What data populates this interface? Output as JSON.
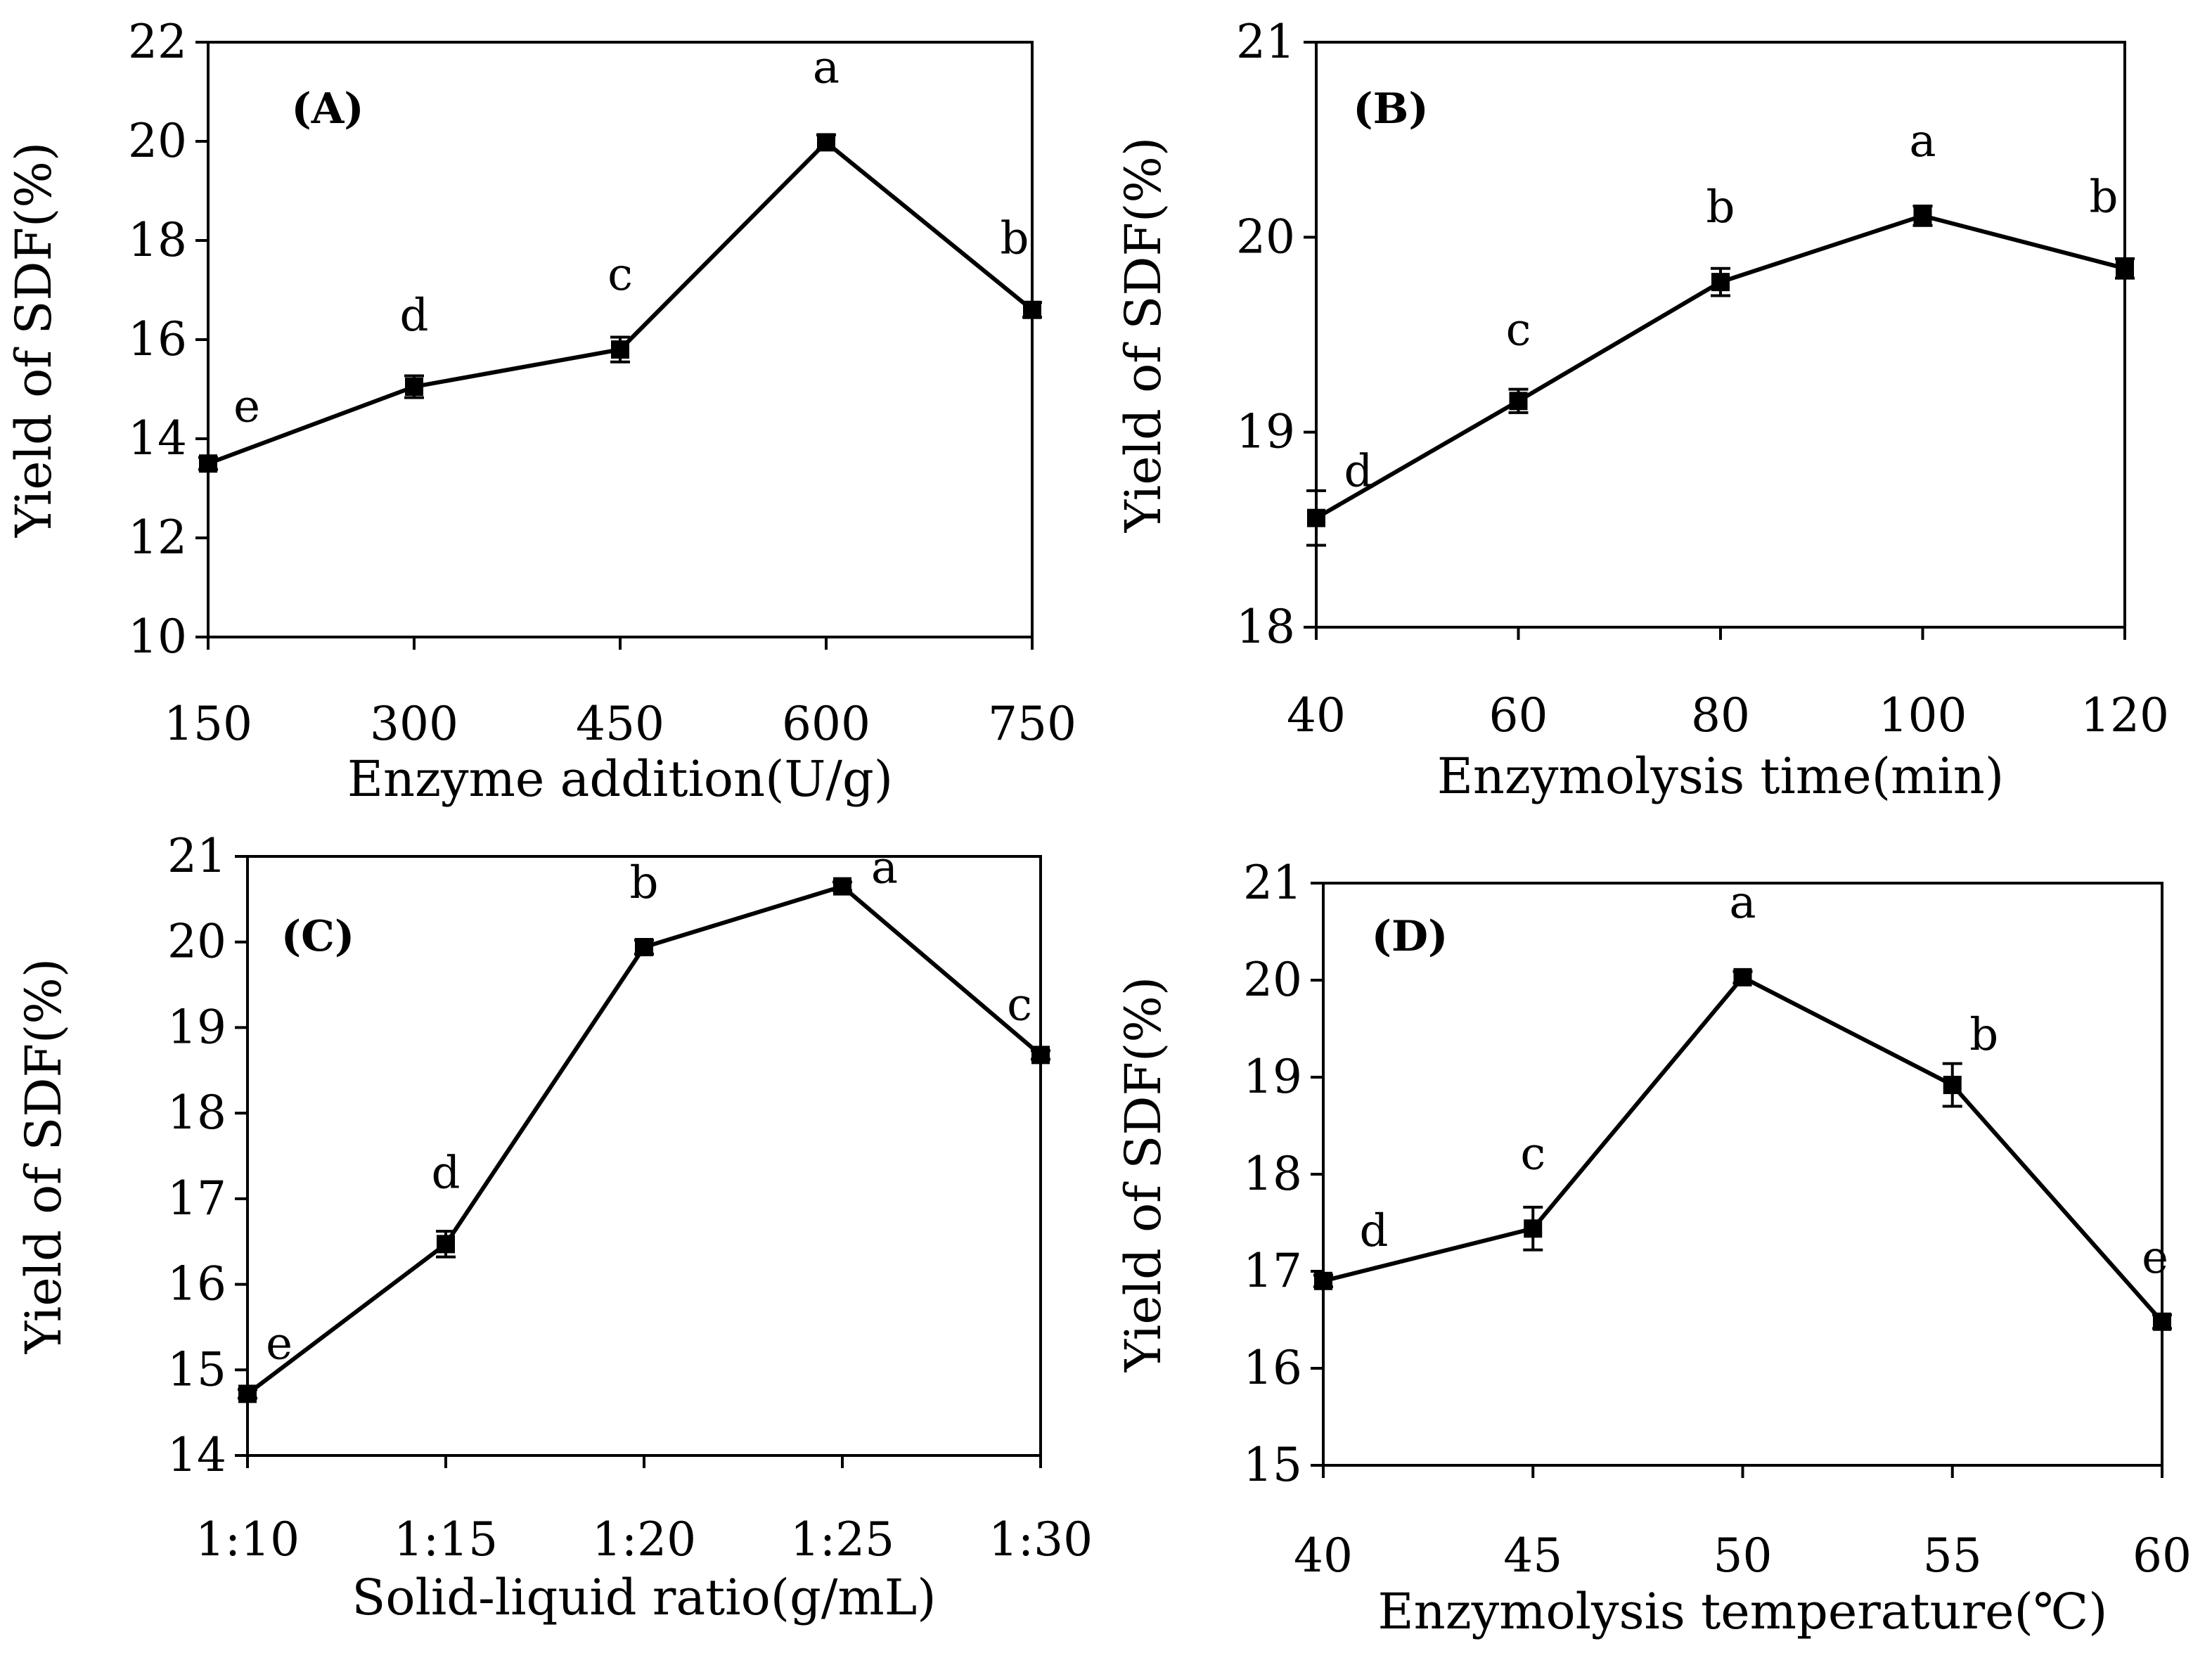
{
  "chart_data": [
    {
      "type": "line",
      "panel_label": "(A)",
      "xlabel": "Enzyme addition(U/g)",
      "ylabel": "Yield of SDF(%)",
      "categories": [
        "150",
        "300",
        "450",
        "600",
        "750"
      ],
      "values": [
        13.5,
        15.05,
        15.8,
        19.98,
        16.6
      ],
      "errors": [
        0.12,
        0.22,
        0.25,
        0.15,
        0.15
      ],
      "significance": [
        "e",
        "d",
        "c",
        "a",
        "b"
      ],
      "ylim": [
        10,
        22
      ],
      "yticks": [
        "10",
        "12",
        "14",
        "16",
        "18",
        "20",
        "22"
      ]
    },
    {
      "type": "line",
      "panel_label": "(B)",
      "xlabel": "Enzymolysis time(min)",
      "ylabel": "Yield of SDF(%)",
      "categories": [
        "40",
        "60",
        "80",
        "100",
        "120"
      ],
      "values": [
        18.56,
        19.16,
        19.77,
        20.11,
        19.84
      ],
      "errors": [
        0.14,
        0.06,
        0.07,
        0.05,
        0.05
      ],
      "significance": [
        "d",
        "c",
        "b",
        "a",
        "b"
      ],
      "ylim": [
        18,
        21
      ],
      "yticks": [
        "18",
        "19",
        "20",
        "21"
      ]
    },
    {
      "type": "line",
      "panel_label": "(C)",
      "xlabel": "Solid-liquid ratio(g/mL)",
      "ylabel": "Yield of SDF(%)",
      "categories": [
        "1:10",
        "1:15",
        "1:20",
        "1:25",
        "1:30"
      ],
      "values": [
        14.72,
        16.47,
        19.94,
        20.65,
        18.68
      ],
      "errors": [
        0.05,
        0.15,
        0.08,
        0.05,
        0.05
      ],
      "significance": [
        "e",
        "d",
        "b",
        "a",
        "c"
      ],
      "ylim": [
        14,
        21
      ],
      "yticks": [
        "14",
        "15",
        "16",
        "17",
        "18",
        "19",
        "20",
        "21"
      ]
    },
    {
      "type": "line",
      "panel_label": "(D)",
      "xlabel": "Enzymolysis temperature(℃)",
      "ylabel": "Yield of SDF(%)",
      "categories": [
        "40",
        "45",
        "50",
        "55",
        "60"
      ],
      "values": [
        16.9,
        17.44,
        20.03,
        18.92,
        16.48
      ],
      "errors": [
        0.06,
        0.22,
        0.06,
        0.22,
        0.07
      ],
      "significance": [
        "d",
        "c",
        "a",
        "b",
        "e"
      ],
      "ylim": [
        15,
        21
      ],
      "yticks": [
        "15",
        "16",
        "17",
        "18",
        "19",
        "20",
        "21"
      ]
    }
  ]
}
